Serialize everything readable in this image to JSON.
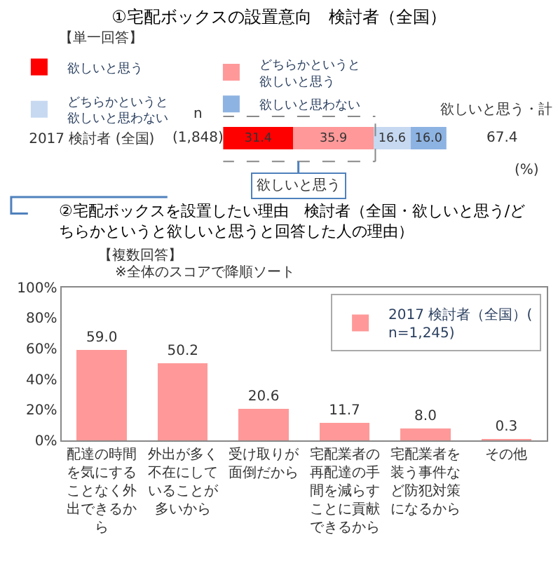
{
  "chart_data": [
    {
      "type": "bar",
      "title": "①宅配ボックスの設置意向　検討者（全国）",
      "orientation": "horizontal",
      "stacked": true,
      "tick_labels": "y",
      "legend": "top",
      "categories": [
        "2017 検討者 (全国)"
      ],
      "series": [
        {
          "name": "欲しいと思う",
          "color": "#ff0000",
          "values": [
            31.4
          ],
          "value_labels": [
            "31.4"
          ]
        },
        {
          "name": "どちらかというと欲しいと思う",
          "color": "#ff9999",
          "values": [
            35.9
          ],
          "value_labels": [
            "35.9"
          ]
        },
        {
          "name": "どちらかというと欲しいと思わない",
          "color": "#c6d9f1",
          "values": [
            16.6
          ],
          "value_labels": [
            "16.6"
          ]
        },
        {
          "name": "欲しいと思わない",
          "color": "#8db3e2",
          "values": [
            16.0
          ],
          "value_labels": [
            "16.0"
          ]
        }
      ],
      "annotations": [
        "【単一回答】",
        "n",
        "(1,848)",
        "欲しいと思う・計",
        "67.4",
        "(%)",
        "欲しいと思う"
      ]
    },
    {
      "type": "bar",
      "title": "②宅配ボックスを設置したい理由　検討者（全国・欲しいと思う/どちらかというと欲しいと思うと回答した人の理由）",
      "legend": "top right",
      "grid": false,
      "categories": [
        "配達の時間を気にすることなく外出できるから",
        "外出が多く不在にしていることが多いから",
        "受け取りが面倒だから",
        "宅配業者の再配達の手間を減らすことに貢献できるから",
        "宅配業者を装う事件など防犯対策になるから",
        "その他"
      ],
      "series": [
        {
          "name": "2017 検討者（全国）(n=1,245)",
          "color": "#ff9999",
          "values": [
            59.0,
            50.2,
            20.6,
            11.7,
            8.0,
            0.3
          ],
          "value_labels": [
            "59.0",
            "50.2",
            "20.6",
            "11.7",
            "8.0",
            "0.3"
          ]
        }
      ],
      "ylim": [
        0,
        100
      ],
      "yticks": [
        {
          "value": 0,
          "label": "0%"
        },
        {
          "value": 20,
          "label": "20%"
        },
        {
          "value": 40,
          "label": "40%"
        },
        {
          "value": 60,
          "label": "60%"
        },
        {
          "value": 80,
          "label": "80%"
        },
        {
          "value": 100,
          "label": "100%"
        }
      ],
      "annotations": [
        "【複数回答】",
        "※全体のスコアで降順ソート"
      ]
    }
  ]
}
